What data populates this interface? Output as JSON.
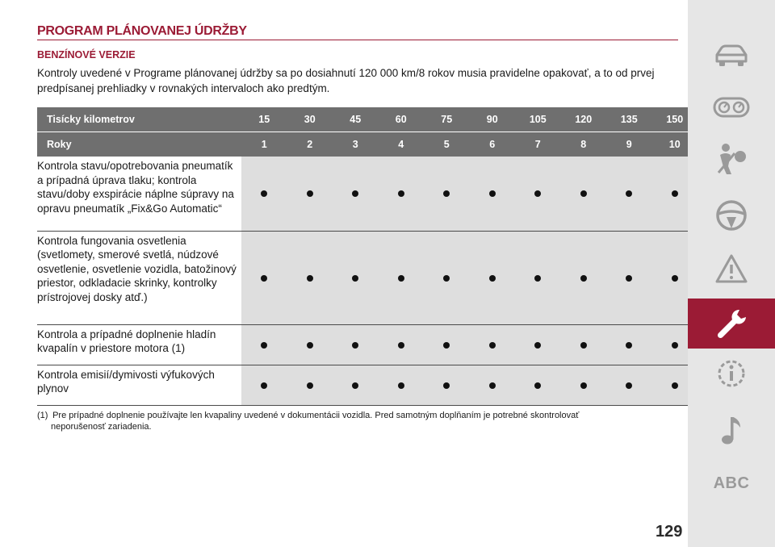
{
  "page": {
    "title": "PROGRAM PLÁNOVANEJ ÚDRŽBY",
    "subtitle": "BENZÍNOVÉ VERZIE",
    "intro": "Kontroly uvedené v Programe plánovanej údržby sa po dosiahnutí 120 000 km/8 rokov musia pravidelne opakovať, a to od prvej predpísanej prehliadky v rovnakých intervaloch ako predtým.",
    "page_number": "129"
  },
  "table": {
    "km_header": "Tisícky kilometrov",
    "km_values": [
      "15",
      "30",
      "45",
      "60",
      "75",
      "90",
      "105",
      "120",
      "135",
      "150"
    ],
    "years_header": "Roky",
    "year_values": [
      "1",
      "2",
      "3",
      "4",
      "5",
      "6",
      "7",
      "8",
      "9",
      "10"
    ],
    "rows": [
      {
        "label": "Kontrola stavu/opotrebovania pneumatík a prípadná úprava tlaku; kontrola stavu/doby exspirácie náplne súpravy na opravu pneumatík „Fix&Go Automatic“",
        "checks": [
          true,
          true,
          true,
          true,
          true,
          true,
          true,
          true,
          true,
          true
        ]
      },
      {
        "label": "Kontrola fungovania osvetlenia (svetlomety, smerové svetlá, núdzové osvetlenie, osvetlenie vozidla, batožinový priestor, odkladacie skrinky, kontrolky prístrojovej dosky atď.)",
        "checks": [
          true,
          true,
          true,
          true,
          true,
          true,
          true,
          true,
          true,
          true
        ]
      },
      {
        "label": "Kontrola a prípadné doplnenie hladín kvapalín v priestore motora (1)",
        "checks": [
          true,
          true,
          true,
          true,
          true,
          true,
          true,
          true,
          true,
          true
        ]
      },
      {
        "label": "Kontrola emisií/dymivosti výfukových plynov",
        "checks": [
          true,
          true,
          true,
          true,
          true,
          true,
          true,
          true,
          true,
          true
        ]
      }
    ]
  },
  "footnote": {
    "mark": "(1)",
    "text": "Pre prípadné doplnenie používajte len kvapaliny uvedené v dokumentácii vozidla. Pred samotným doplňaním je potrebné skontrolovať",
    "text_cont": "neporušenosť zariadenia."
  },
  "sidebar": {
    "items": [
      {
        "icon": "car-icon"
      },
      {
        "icon": "dashboard-gauges-icon"
      },
      {
        "icon": "seatbelt-passenger-icon"
      },
      {
        "icon": "steering-wheel-icon"
      },
      {
        "icon": "warning-triangle-icon"
      },
      {
        "icon": "wrench-icon",
        "active": true
      },
      {
        "icon": "info-gear-icon"
      },
      {
        "icon": "music-note-icon"
      },
      {
        "icon": "abc-index",
        "label": "ABC"
      }
    ]
  },
  "colors": {
    "accent": "#9b1b35",
    "header_bg": "#6f6f6f",
    "cell_bg": "#dedede",
    "sidebar_bg": "#e6e6e6",
    "sidebar_icon": "#9a9a9a"
  }
}
